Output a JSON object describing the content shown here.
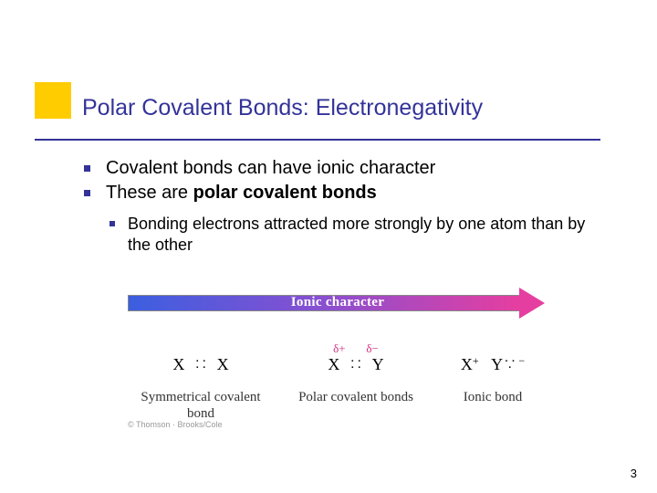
{
  "accent_color": "#ffcc00",
  "theme_color": "#333399",
  "title": "Polar Covalent Bonds: Electronegativity",
  "bullets": {
    "level1": [
      "Covalent bonds can have ionic character",
      {
        "pre": "These are ",
        "bold": "polar covalent bonds"
      }
    ],
    "level2": [
      "Bonding electrons attracted more strongly by one atom than by the other"
    ]
  },
  "diagram": {
    "arrow": {
      "label": "Ionic character",
      "gradient_colors": [
        "#3b5fe0",
        "#8a4fd0",
        "#e63ea0"
      ],
      "label_color": "#ffffff"
    },
    "columns": [
      {
        "delta": "",
        "formula_html": "X&nbsp;&nbsp;<span class='colon-stack'>.&nbsp;.<br>.&nbsp;.</span>&nbsp;&nbsp;X",
        "label": "Symmetrical covalent bond"
      },
      {
        "delta": "δ+&nbsp;&nbsp;&nbsp;&nbsp;&nbsp;&nbsp;&nbsp;δ−",
        "formula_html": "X&nbsp;&nbsp;<span class='colon-stack'>.&nbsp;.<br>.&nbsp;.</span>&nbsp;&nbsp;Y",
        "label": "Polar covalent bonds"
      },
      {
        "delta": "",
        "formula_html": "X<span class='superscript'>+</span>&nbsp;&nbsp;&nbsp;Y<span class='colon-stack' style='margin:0 1px 0 2px'>. .<br>.</span><span class='superscript'>&nbsp;−</span>",
        "label": "Ionic bond"
      }
    ],
    "delta_color": "#d03080"
  },
  "credit": "© Thomson · Brooks/Cole",
  "page_number": "3"
}
